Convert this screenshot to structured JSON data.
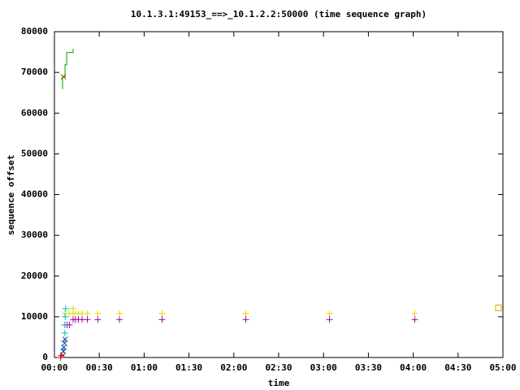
{
  "chart_data": {
    "type": "scatter",
    "title": "10.1.3.1:49153_==>_10.1.2.2:50000 (time sequence graph)",
    "x_label": "time",
    "y_label": "sequence offset",
    "xlim": [
      0,
      300
    ],
    "ylim": [
      0,
      80000
    ],
    "xticks": [
      {
        "value": 0,
        "label": "00:00"
      },
      {
        "value": 30,
        "label": "00:30"
      },
      {
        "value": 60,
        "label": "01:00"
      },
      {
        "value": 90,
        "label": "01:30"
      },
      {
        "value": 120,
        "label": "02:00"
      },
      {
        "value": 150,
        "label": "02:30"
      },
      {
        "value": 180,
        "label": "03:00"
      },
      {
        "value": 210,
        "label": "03:30"
      },
      {
        "value": 240,
        "label": "04:00"
      },
      {
        "value": 270,
        "label": "04:30"
      },
      {
        "value": 300,
        "label": "05:00"
      }
    ],
    "yticks": [
      0,
      10000,
      20000,
      30000,
      40000,
      50000,
      60000,
      70000,
      80000
    ],
    "series": [
      {
        "marker": "line",
        "color": "#00a000",
        "x": [
          5.4,
          5.4,
          7.1,
          7.1,
          8.2,
          8.2,
          12.5,
          12.5
        ],
        "values": [
          65900,
          68900,
          68900,
          71900,
          71900,
          74900,
          74900,
          75800
        ]
      },
      {
        "marker": "plus",
        "color": "#dddd00",
        "x": [
          7,
          9.8,
          12.5,
          12.5,
          14,
          16,
          18.5,
          22,
          29,
          43.5,
          72,
          128,
          184,
          241
        ],
        "values": [
          10800,
          10800,
          10800,
          12000,
          10800,
          10800,
          10800,
          10800,
          10800,
          10800,
          10800,
          10800,
          10800,
          10800
        ]
      },
      {
        "marker": "plus",
        "color": "#b000b0",
        "x": [
          7,
          8.5,
          10,
          12.5,
          14,
          16,
          18.5,
          22,
          29,
          43.5,
          72,
          128,
          184,
          241
        ],
        "values": [
          8000,
          8000,
          8000,
          9300,
          9300,
          9300,
          9300,
          9300,
          9300,
          9300,
          9300,
          9300,
          9300,
          9300
        ]
      },
      {
        "marker": "plus",
        "color": "#00c0c0",
        "x": [
          6,
          6.5,
          7,
          7,
          7.2,
          7.5
        ],
        "values": [
          2000,
          4000,
          6000,
          8000,
          10000,
          12000
        ]
      },
      {
        "marker": "cross",
        "color": "#2040a0",
        "x": [
          5.5,
          6,
          6.3,
          6.8,
          7.2
        ],
        "values": [
          500,
          1500,
          2500,
          3500,
          4500
        ]
      },
      {
        "marker": "cross",
        "color": "#a05000",
        "x": [
          6
        ],
        "values": [
          68900
        ]
      },
      {
        "marker": "plus",
        "color": "#ff0000",
        "x": [
          4,
          4.5
        ],
        "values": [
          0,
          500
        ]
      },
      {
        "marker": "square",
        "color": "#e0a000",
        "x": [
          297
        ],
        "values": [
          12200
        ]
      }
    ]
  }
}
